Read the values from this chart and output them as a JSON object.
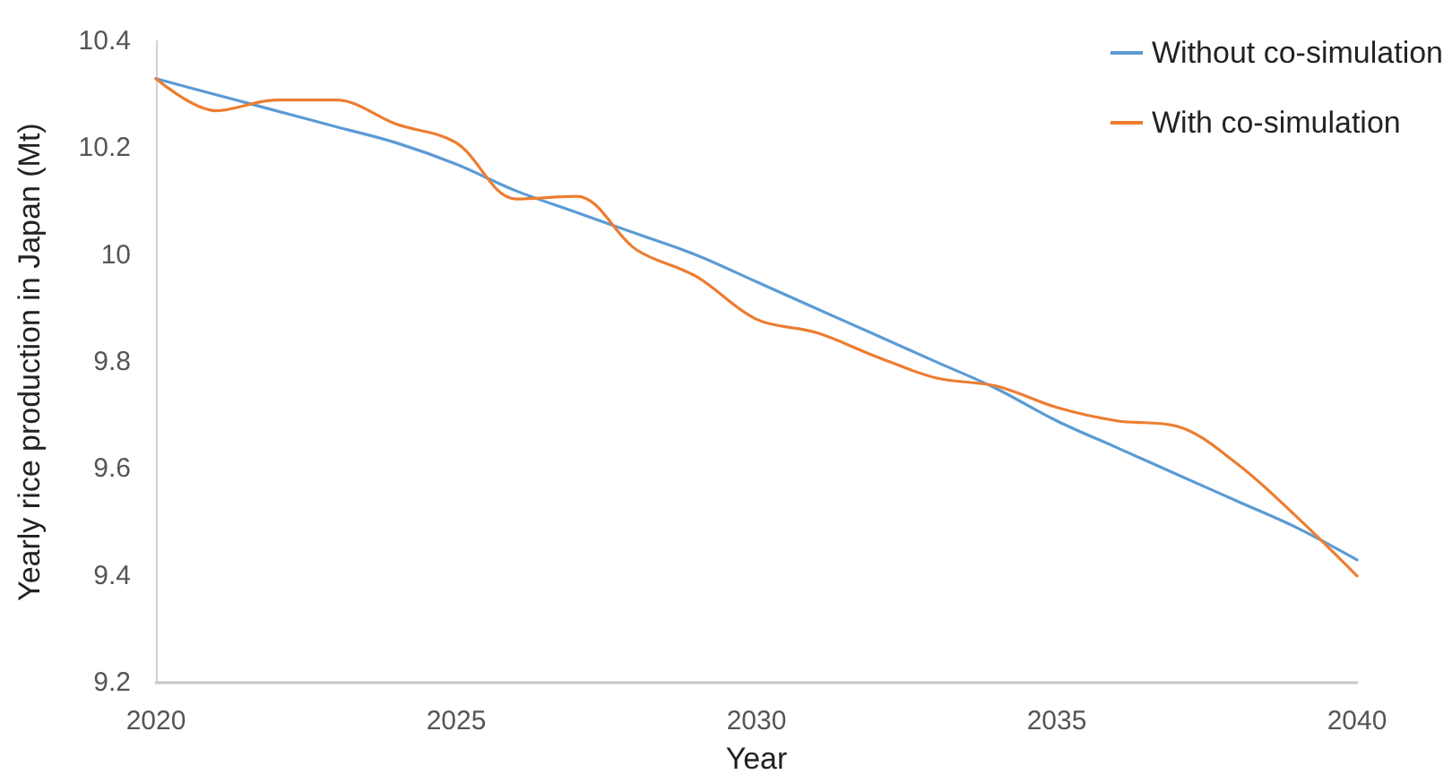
{
  "chart_data": {
    "type": "line",
    "xlabel": "Year",
    "ylabel": "Yearly rice production in Japan (Mt)",
    "x": [
      2020,
      2021,
      2022,
      2023,
      2024,
      2025,
      2026,
      2027,
      2028,
      2029,
      2030,
      2031,
      2032,
      2033,
      2034,
      2035,
      2036,
      2037,
      2038,
      2039,
      2040
    ],
    "series": [
      {
        "name": "Without co-simulation",
        "color": "#5b9bd5",
        "values": [
          10.33,
          10.3,
          10.27,
          10.24,
          10.21,
          10.17,
          10.12,
          10.08,
          10.04,
          10.0,
          9.95,
          9.9,
          9.85,
          9.8,
          9.75,
          9.69,
          9.64,
          9.59,
          9.54,
          9.49,
          9.43
        ]
      },
      {
        "name": "With co-simulation",
        "color": "#ed7d31",
        "values": [
          10.33,
          10.27,
          10.29,
          10.29,
          10.245,
          10.21,
          10.105,
          10.11,
          10.01,
          9.96,
          9.88,
          9.855,
          9.81,
          9.77,
          9.755,
          9.715,
          9.69,
          9.68,
          9.61,
          9.51,
          9.4
        ]
      }
    ],
    "xlim": [
      2020,
      2040
    ],
    "xticks": [
      2020,
      2025,
      2030,
      2035,
      2040
    ],
    "ylim": [
      9.2,
      10.4
    ],
    "yticks": [
      9.2,
      9.4,
      9.6,
      9.8,
      10,
      10.2,
      10.4
    ],
    "grid": false,
    "legend": "top right",
    "marker": "none",
    "line_style": "solid"
  }
}
